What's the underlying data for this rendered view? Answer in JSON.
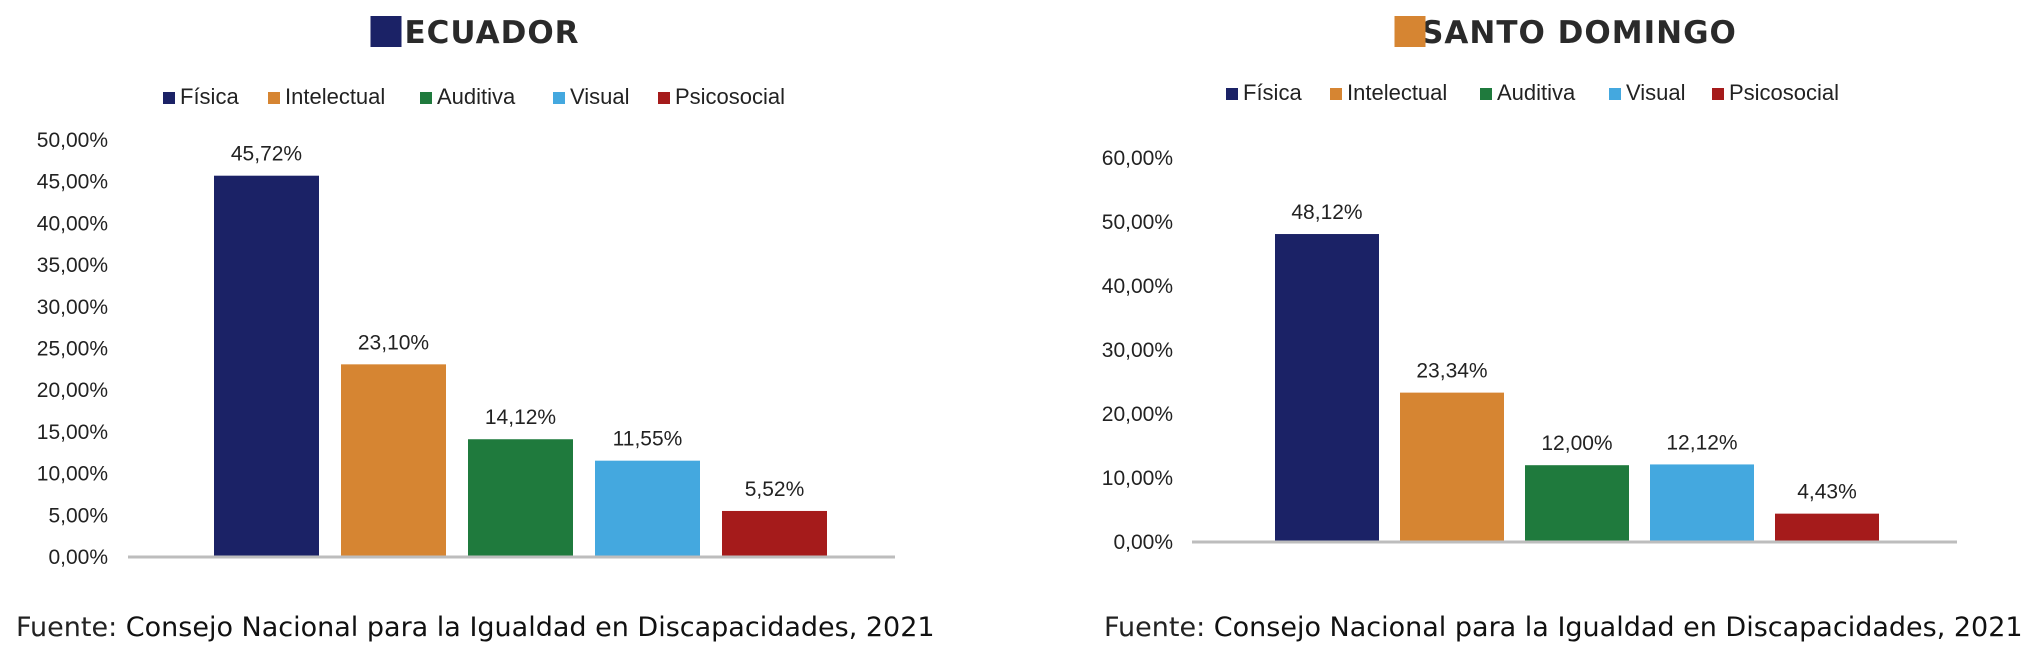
{
  "charts": [
    {
      "title": "ECUADOR",
      "title_color": "#1b2266",
      "source_prefix": "Fuente:",
      "source_text": "Consejo Nacional para la Igualdad en Discapacidades, 2021"
    },
    {
      "title": "SANTO DOMINGO",
      "title_color": "#d68532",
      "source_prefix": "Fuente:",
      "source_text": "Consejo Nacional para la Igualdad en Discapacidades, 2021"
    }
  ],
  "chart_data": [
    {
      "type": "bar",
      "title": "ECUADOR",
      "categories": [
        "Física",
        "Intelectual",
        "Auditiva",
        "Visual",
        "Psicosocial"
      ],
      "values": [
        45.72,
        23.1,
        14.12,
        11.55,
        5.52
      ],
      "data_labels": [
        "45,72%",
        "23,10%",
        "14,12%",
        "11,55%",
        "5,52%"
      ],
      "colors": [
        "#1b2266",
        "#d68532",
        "#1f7a3d",
        "#44a8df",
        "#a51b1b"
      ],
      "ylim": [
        0,
        50
      ],
      "yticks": [
        "0,00%",
        "5,00%",
        "10,00%",
        "15,00%",
        "20,00%",
        "25,00%",
        "30,00%",
        "35,00%",
        "40,00%",
        "45,00%",
        "50,00%"
      ],
      "legend": "top",
      "grid": false
    },
    {
      "type": "bar",
      "title": "SANTO DOMINGO",
      "categories": [
        "Física",
        "Intelectual",
        "Auditiva",
        "Visual",
        "Psicosocial"
      ],
      "values": [
        48.12,
        23.34,
        12.0,
        12.12,
        4.43
      ],
      "data_labels": [
        "48,12%",
        "23,34%",
        "12,00%",
        "12,12%",
        "4,43%"
      ],
      "colors": [
        "#1b2266",
        "#d68532",
        "#1f7a3d",
        "#44a8df",
        "#a51b1b"
      ],
      "ylim": [
        0,
        60
      ],
      "yticks": [
        "0,00%",
        "10,00%",
        "20,00%",
        "30,00%",
        "40,00%",
        "50,00%",
        "60,00%"
      ],
      "legend": "top",
      "grid": false
    }
  ]
}
